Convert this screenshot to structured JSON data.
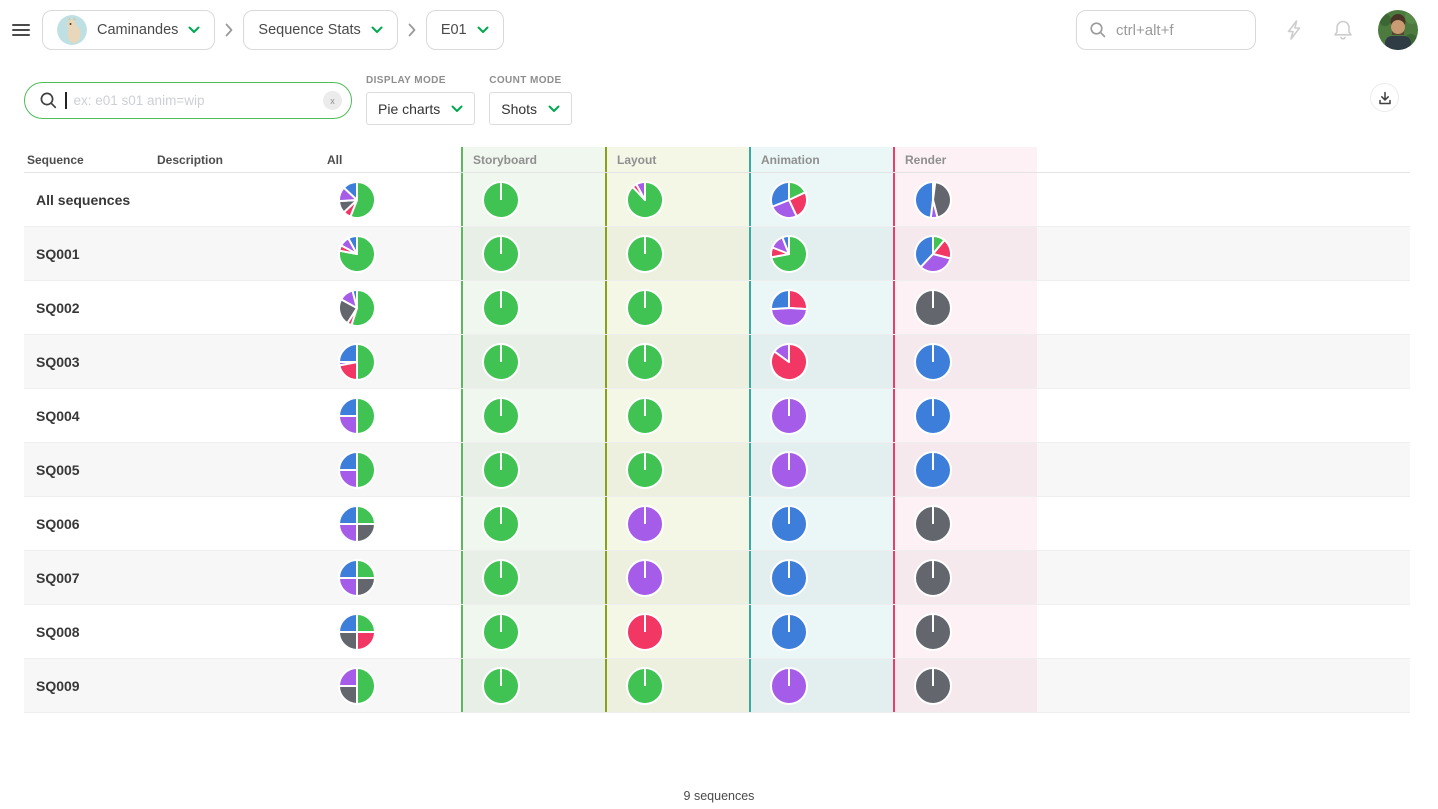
{
  "topbar": {
    "project_name": "Caminandes",
    "section_name": "Sequence Stats",
    "episode_name": "E01",
    "search_placeholder": "ctrl+alt+f"
  },
  "filters": {
    "search_placeholder": "ex: e01 s01 anim=wip",
    "clear_label": "x",
    "display_mode_label": "DISPLAY MODE",
    "display_mode_value": "Pie charts",
    "count_mode_label": "COUNT MODE",
    "count_mode_value": "Shots"
  },
  "table": {
    "columns": [
      "Sequence",
      "Description",
      "All",
      "Storyboard",
      "Layout",
      "Animation",
      "Render"
    ]
  },
  "footer": {
    "count": "9 sequences"
  },
  "icons": {
    "hamburger": "menu",
    "breadcrumb-chevron": "chevron-right",
    "dropdown-chevron": "chevron-down",
    "search": "magnifier",
    "flash": "lightning-bolt",
    "bell": "notifications",
    "clear": "x",
    "download": "download-tray"
  },
  "accent_colors": {
    "chevron_green": "#00a94f",
    "search_focus_border": "#4fbd58",
    "storyboard_border": "#5cb75f",
    "layout_border": "#88a11d",
    "animation_border": "#38a8a4",
    "render_border": "#e83e6c"
  },
  "chart_data": {
    "type": "pie",
    "note": "slices are [status, percent] listed clockwise from 12 o'clock",
    "status_colors": {
      "done": "#40c353",
      "wip": "#3d7edb",
      "wfa": "#a55ce8",
      "retake": "#f23764",
      "todo": "#64666d"
    },
    "columns": [
      "all",
      "storyboard",
      "layout",
      "animation",
      "render"
    ],
    "rows": [
      {
        "sequence": "All sequences",
        "description": "",
        "pies": {
          "all": [
            [
              "done",
              56
            ],
            [
              "retake",
              7
            ],
            [
              "todo",
              11
            ],
            [
              "wfa",
              13
            ],
            [
              "wip",
              13
            ]
          ],
          "storyboard": [
            [
              "done",
              100
            ]
          ],
          "layout": [
            [
              "done",
              88
            ],
            [
              "retake",
              4
            ],
            [
              "wfa",
              8
            ]
          ],
          "animation": [
            [
              "done",
              18
            ],
            [
              "retake",
              25
            ],
            [
              "wfa",
              26
            ],
            [
              "wip",
              31
            ]
          ],
          "render": [
            [
              "retake",
              2
            ],
            [
              "todo",
              44
            ],
            [
              "wfa",
              6
            ],
            [
              "wip",
              48
            ]
          ]
        }
      },
      {
        "sequence": "SQ001",
        "description": "",
        "pies": {
          "all": [
            [
              "done",
              78
            ],
            [
              "retake",
              5
            ],
            [
              "wfa",
              9
            ],
            [
              "wip",
              8
            ]
          ],
          "storyboard": [
            [
              "done",
              100
            ]
          ],
          "layout": [
            [
              "done",
              100
            ]
          ],
          "animation": [
            [
              "done",
              72
            ],
            [
              "retake",
              9
            ],
            [
              "wfa",
              13
            ],
            [
              "wip",
              6
            ]
          ],
          "render": [
            [
              "done",
              11
            ],
            [
              "retake",
              18
            ],
            [
              "wfa",
              33
            ],
            [
              "wip",
              38
            ]
          ]
        }
      },
      {
        "sequence": "SQ002",
        "description": "",
        "pies": {
          "all": [
            [
              "done",
              55
            ],
            [
              "retake",
              4
            ],
            [
              "todo",
              24
            ],
            [
              "wfa",
              13
            ],
            [
              "wip",
              4
            ]
          ],
          "storyboard": [
            [
              "done",
              100
            ]
          ],
          "layout": [
            [
              "done",
              100
            ]
          ],
          "animation": [
            [
              "retake",
              26
            ],
            [
              "wfa",
              48
            ],
            [
              "wip",
              26
            ]
          ],
          "render": [
            [
              "todo",
              100
            ]
          ]
        }
      },
      {
        "sequence": "SQ003",
        "description": "",
        "pies": {
          "all": [
            [
              "done",
              50
            ],
            [
              "retake",
              22
            ],
            [
              "wfa",
              3
            ],
            [
              "wip",
              25
            ]
          ],
          "storyboard": [
            [
              "done",
              100
            ]
          ],
          "layout": [
            [
              "done",
              100
            ]
          ],
          "animation": [
            [
              "retake",
              85
            ],
            [
              "wfa",
              15
            ]
          ],
          "render": [
            [
              "wip",
              100
            ]
          ]
        }
      },
      {
        "sequence": "SQ004",
        "description": "",
        "pies": {
          "all": [
            [
              "done",
              50
            ],
            [
              "wfa",
              25
            ],
            [
              "wip",
              25
            ]
          ],
          "storyboard": [
            [
              "done",
              100
            ]
          ],
          "layout": [
            [
              "done",
              100
            ]
          ],
          "animation": [
            [
              "wfa",
              100
            ]
          ],
          "render": [
            [
              "wip",
              100
            ]
          ]
        }
      },
      {
        "sequence": "SQ005",
        "description": "",
        "pies": {
          "all": [
            [
              "done",
              50
            ],
            [
              "wfa",
              25
            ],
            [
              "wip",
              25
            ]
          ],
          "storyboard": [
            [
              "done",
              100
            ]
          ],
          "layout": [
            [
              "done",
              100
            ]
          ],
          "animation": [
            [
              "wfa",
              100
            ]
          ],
          "render": [
            [
              "wip",
              100
            ]
          ]
        }
      },
      {
        "sequence": "SQ006",
        "description": "",
        "pies": {
          "all": [
            [
              "done",
              25
            ],
            [
              "todo",
              25
            ],
            [
              "wfa",
              25
            ],
            [
              "wip",
              25
            ]
          ],
          "storyboard": [
            [
              "done",
              100
            ]
          ],
          "layout": [
            [
              "wfa",
              100
            ]
          ],
          "animation": [
            [
              "wip",
              100
            ]
          ],
          "render": [
            [
              "todo",
              100
            ]
          ]
        }
      },
      {
        "sequence": "SQ007",
        "description": "",
        "pies": {
          "all": [
            [
              "done",
              25
            ],
            [
              "todo",
              25
            ],
            [
              "wfa",
              25
            ],
            [
              "wip",
              25
            ]
          ],
          "storyboard": [
            [
              "done",
              100
            ]
          ],
          "layout": [
            [
              "wfa",
              100
            ]
          ],
          "animation": [
            [
              "wip",
              100
            ]
          ],
          "render": [
            [
              "todo",
              100
            ]
          ]
        }
      },
      {
        "sequence": "SQ008",
        "description": "",
        "pies": {
          "all": [
            [
              "done",
              25
            ],
            [
              "retake",
              25
            ],
            [
              "todo",
              25
            ],
            [
              "wip",
              25
            ]
          ],
          "storyboard": [
            [
              "done",
              100
            ]
          ],
          "layout": [
            [
              "retake",
              100
            ]
          ],
          "animation": [
            [
              "wip",
              100
            ]
          ],
          "render": [
            [
              "todo",
              100
            ]
          ]
        }
      },
      {
        "sequence": "SQ009",
        "description": "",
        "pies": {
          "all": [
            [
              "done",
              50
            ],
            [
              "todo",
              25
            ],
            [
              "wfa",
              25
            ]
          ],
          "storyboard": [
            [
              "done",
              100
            ]
          ],
          "layout": [
            [
              "done",
              100
            ]
          ],
          "animation": [
            [
              "wfa",
              100
            ]
          ],
          "render": [
            [
              "todo",
              100
            ]
          ]
        }
      }
    ]
  }
}
